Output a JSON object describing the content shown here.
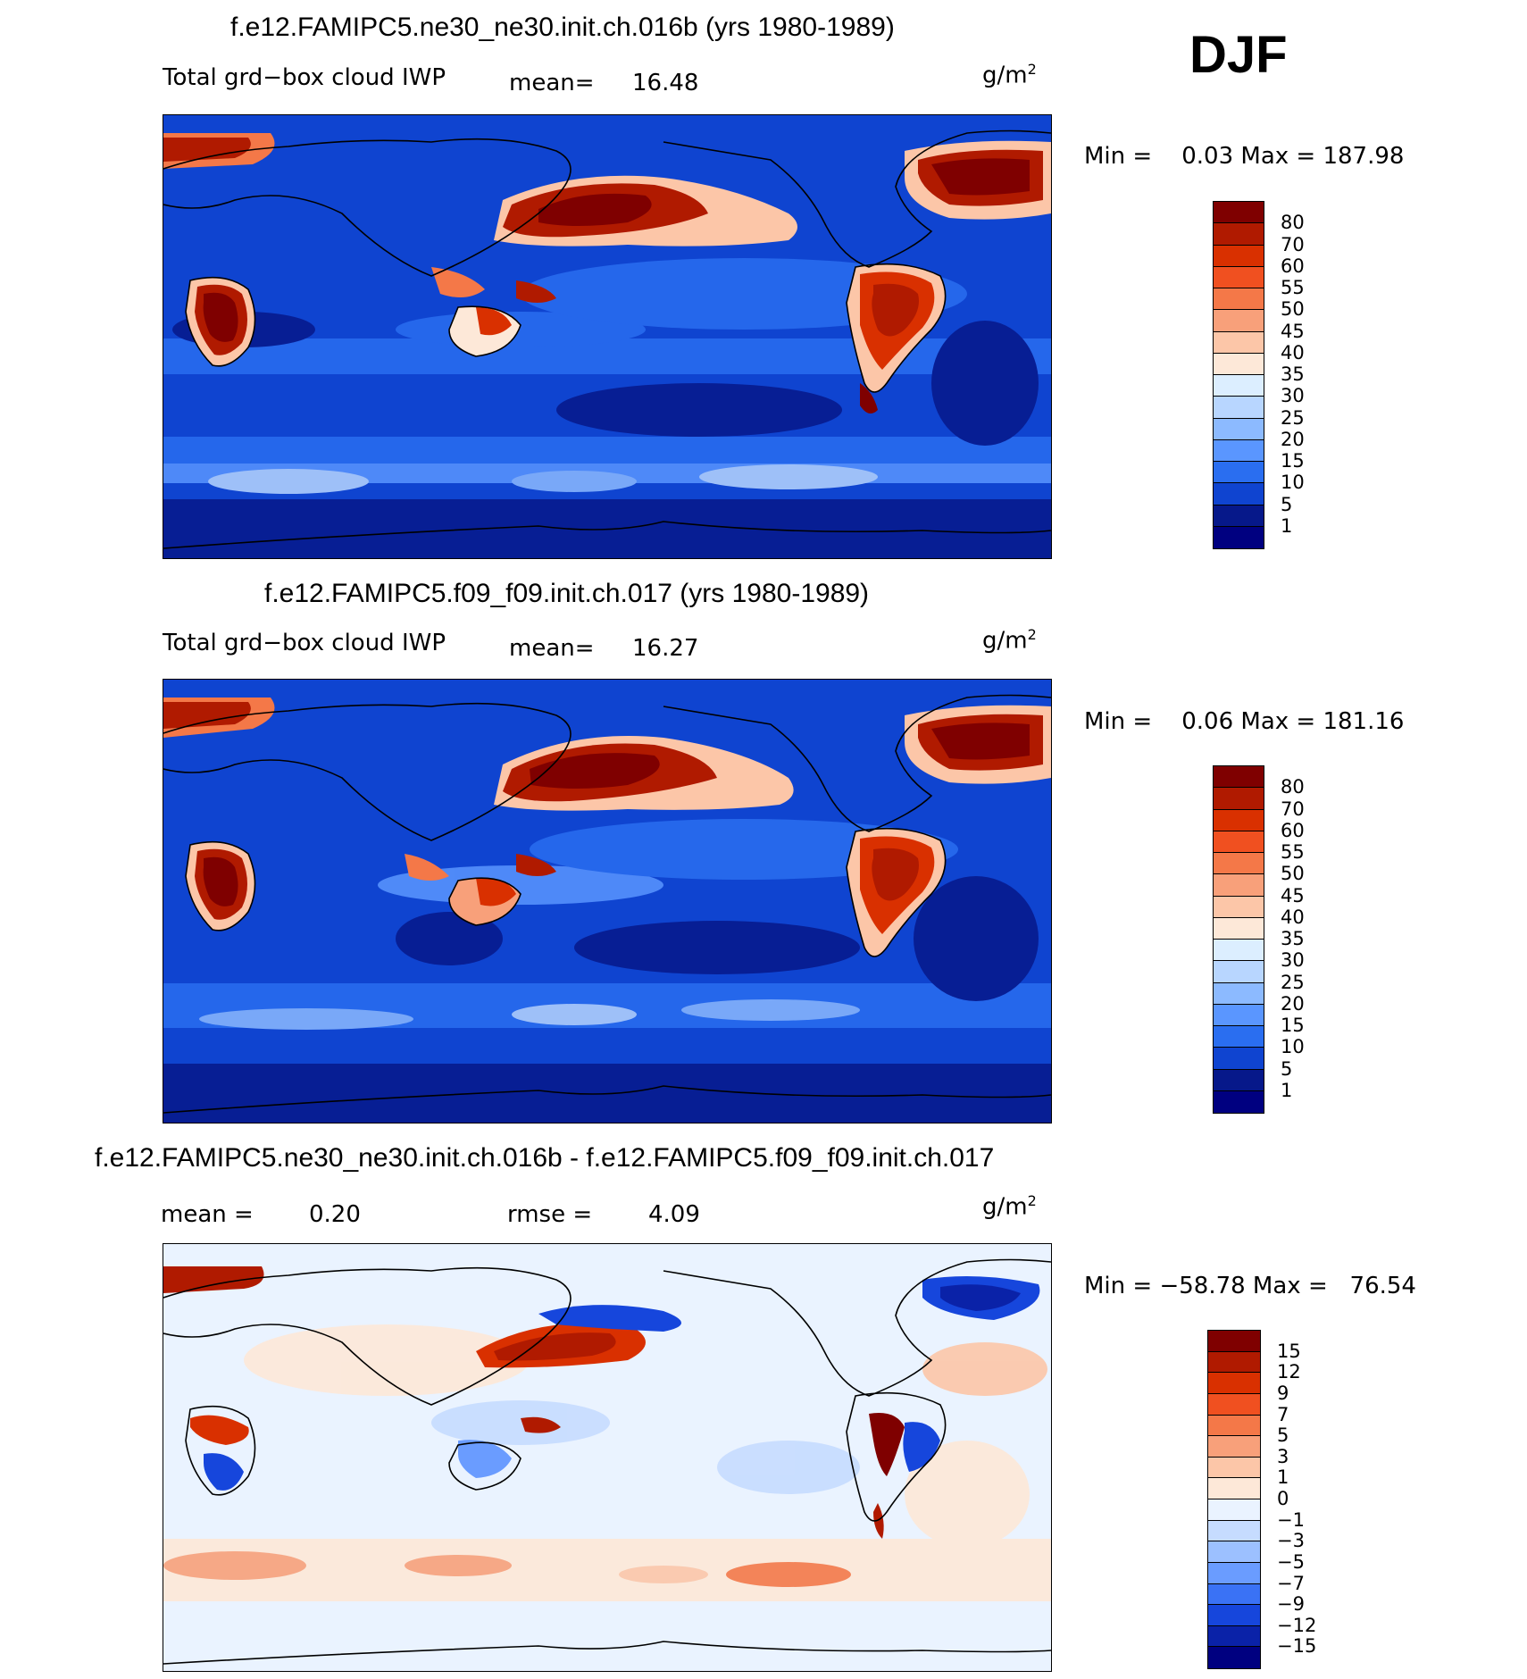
{
  "season": "DJF",
  "units": "g/m",
  "units_sup": "2",
  "panels": [
    {
      "title": "f.e12.FAMIPC5.ne30_ne30.init.ch.016b (yrs 1980-1989)",
      "variable": "Total grd−box cloud IWP",
      "mean_label": "mean=",
      "mean_value": "16.48",
      "minmax": "Min =    0.03 Max = 187.98"
    },
    {
      "title": "f.e12.FAMIPC5.f09_f09.init.ch.017 (yrs 1980-1989)",
      "variable": "Total grd−box cloud IWP",
      "mean_label": "mean=",
      "mean_value": "16.27",
      "minmax": "Min =    0.06 Max = 181.16"
    }
  ],
  "diff_panel": {
    "title": "f.e12.FAMIPC5.ne30_ne30.init.ch.016b - f.e12.FAMIPC5.f09_f09.init.ch.017",
    "mean_label": "mean =",
    "mean_value": "0.20",
    "rmse_label": "rmse =",
    "rmse_value": "4.09",
    "minmax": "Min = −58.78 Max =   76.54"
  },
  "colorbars": {
    "field": {
      "labels": [
        "80",
        "70",
        "60",
        "55",
        "50",
        "45",
        "40",
        "35",
        "30",
        "25",
        "20",
        "15",
        "10",
        "5",
        "1"
      ],
      "colors": [
        "#7f0000",
        "#b01a00",
        "#d93000",
        "#f05020",
        "#f47848",
        "#f8a07a",
        "#fcc6a8",
        "#fde8d8",
        "#dceeff",
        "#b8d6ff",
        "#8cbaff",
        "#5a96ff",
        "#2a6ef0",
        "#0f44d0",
        "#06188a",
        "#000080"
      ]
    },
    "diff": {
      "labels": [
        "15",
        "12",
        "9",
        "7",
        "5",
        "3",
        "1",
        "0",
        "−1",
        "−3",
        "−5",
        "−7",
        "−9",
        "−12",
        "−15"
      ],
      "colors": [
        "#7f0000",
        "#b01a00",
        "#d93000",
        "#f05020",
        "#f47848",
        "#f8a07a",
        "#fcc6a8",
        "#fde8d8",
        "#eaf3ff",
        "#c6dcff",
        "#9cc0ff",
        "#6a9cff",
        "#3a72f5",
        "#1646dc",
        "#0a22a8",
        "#000080"
      ]
    }
  }
}
